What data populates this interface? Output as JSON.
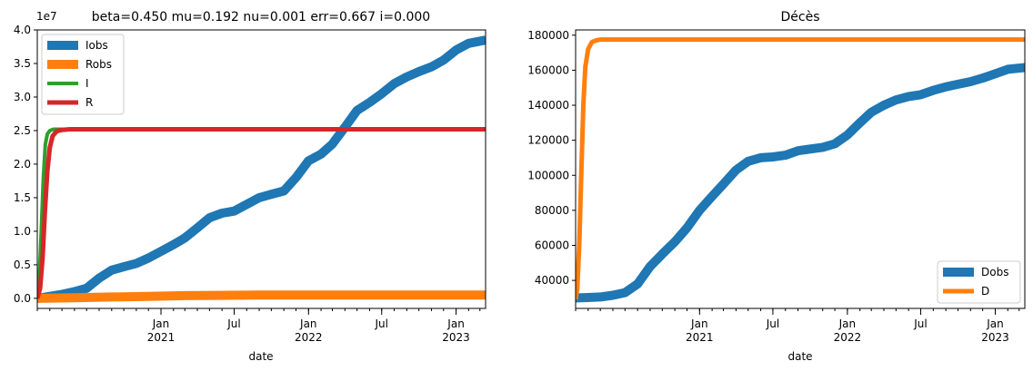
{
  "chart_data": [
    {
      "type": "line",
      "title": "beta=0.450 mu=0.192 nu=0.001 err=0.667 i=0.000",
      "xlabel": "date",
      "ylabel": "",
      "offset_label": "1e7",
      "xlim": [
        "2020-03-01",
        "2023-03-15"
      ],
      "ylim": [
        -0.15,
        4.0
      ],
      "yticks": [
        0.0,
        0.5,
        1.0,
        1.5,
        2.0,
        2.5,
        3.0,
        3.5,
        4.0
      ],
      "ytick_labels": [
        "0.0",
        "0.5",
        "1.0",
        "1.5",
        "2.0",
        "2.5",
        "3.0",
        "3.5",
        "4.0"
      ],
      "xticks": [
        {
          "date": "2021-01-01",
          "label": "Jan",
          "sub": "2021"
        },
        {
          "date": "2021-07-01",
          "label": "Jul",
          "sub": ""
        },
        {
          "date": "2022-01-01",
          "label": "Jan",
          "sub": "2022"
        },
        {
          "date": "2022-07-01",
          "label": "Jul",
          "sub": ""
        },
        {
          "date": "2023-01-01",
          "label": "Jan",
          "sub": "2023"
        }
      ],
      "grid": false,
      "legend": "upper-left",
      "series": [
        {
          "name": "Iobs",
          "color": "#1f77b4",
          "width": 10,
          "x": [
            "2020-03-01",
            "2020-04-01",
            "2020-05-01",
            "2020-06-01",
            "2020-07-01",
            "2020-08-01",
            "2020-09-01",
            "2020-10-01",
            "2020-11-01",
            "2020-12-01",
            "2021-01-01",
            "2021-02-01",
            "2021-03-01",
            "2021-04-01",
            "2021-05-01",
            "2021-06-01",
            "2021-07-01",
            "2021-08-01",
            "2021-09-01",
            "2021-10-01",
            "2021-11-01",
            "2021-12-01",
            "2022-01-01",
            "2022-02-01",
            "2022-03-01",
            "2022-04-01",
            "2022-05-01",
            "2022-06-01",
            "2022-07-01",
            "2022-08-01",
            "2022-09-01",
            "2022-10-01",
            "2022-11-01",
            "2022-12-01",
            "2023-01-01",
            "2023-02-01",
            "2023-03-15"
          ],
          "y": [
            0.0,
            0.03,
            0.06,
            0.1,
            0.15,
            0.3,
            0.42,
            0.47,
            0.52,
            0.6,
            0.7,
            0.8,
            0.9,
            1.05,
            1.2,
            1.27,
            1.3,
            1.4,
            1.5,
            1.55,
            1.6,
            1.8,
            2.05,
            2.15,
            2.3,
            2.55,
            2.8,
            2.92,
            3.05,
            3.2,
            3.3,
            3.38,
            3.45,
            3.55,
            3.7,
            3.8,
            3.85
          ]
        },
        {
          "name": "Robs",
          "color": "#ff7f0e",
          "width": 10,
          "x": [
            "2020-03-01",
            "2020-06-01",
            "2020-09-01",
            "2020-12-01",
            "2021-03-01",
            "2021-06-01",
            "2021-09-01",
            "2021-12-01",
            "2022-03-01",
            "2022-06-01",
            "2022-09-01",
            "2022-12-01",
            "2023-03-15"
          ],
          "y": [
            0.0,
            0.01,
            0.02,
            0.03,
            0.04,
            0.045,
            0.05,
            0.05,
            0.05,
            0.05,
            0.05,
            0.05,
            0.05
          ]
        },
        {
          "name": "I",
          "color": "#2ca02c",
          "width": 4,
          "x": [
            "2020-03-01",
            "2020-03-06",
            "2020-03-11",
            "2020-03-16",
            "2020-03-21",
            "2020-03-26",
            "2020-04-01",
            "2020-04-10",
            "2020-04-25",
            "2020-05-15",
            "2023-03-15"
          ],
          "y": [
            0.0,
            0.3,
            1.0,
            1.8,
            2.3,
            2.45,
            2.5,
            2.52,
            2.52,
            2.52,
            2.52
          ]
        },
        {
          "name": "R",
          "color": "#d62728",
          "width": 5,
          "x": [
            "2020-03-01",
            "2020-03-08",
            "2020-03-14",
            "2020-03-20",
            "2020-03-26",
            "2020-04-01",
            "2020-04-08",
            "2020-04-18",
            "2020-05-01",
            "2020-05-20",
            "2023-03-15"
          ],
          "y": [
            0.0,
            0.15,
            0.6,
            1.3,
            1.9,
            2.25,
            2.42,
            2.49,
            2.51,
            2.52,
            2.52
          ]
        }
      ]
    },
    {
      "type": "line",
      "title": "Décès",
      "xlabel": "date",
      "ylabel": "",
      "xlim": [
        "2020-03-01",
        "2023-03-15"
      ],
      "ylim": [
        24000,
        183000
      ],
      "yticks": [
        40000,
        60000,
        80000,
        100000,
        120000,
        140000,
        160000,
        180000
      ],
      "ytick_labels": [
        "40000",
        "60000",
        "80000",
        "100000",
        "120000",
        "140000",
        "160000",
        "180000"
      ],
      "xticks": [
        {
          "date": "2021-01-01",
          "label": "Jan",
          "sub": "2021"
        },
        {
          "date": "2021-07-01",
          "label": "Jul",
          "sub": ""
        },
        {
          "date": "2022-01-01",
          "label": "Jan",
          "sub": "2022"
        },
        {
          "date": "2022-07-01",
          "label": "Jul",
          "sub": ""
        },
        {
          "date": "2023-01-01",
          "label": "Jan",
          "sub": "2023"
        }
      ],
      "grid": false,
      "legend": "lower-right",
      "series": [
        {
          "name": "Dobs",
          "color": "#1f77b4",
          "width": 10,
          "x": [
            "2020-03-01",
            "2020-04-01",
            "2020-05-01",
            "2020-06-01",
            "2020-07-01",
            "2020-08-01",
            "2020-09-01",
            "2020-10-01",
            "2020-11-01",
            "2020-12-01",
            "2021-01-01",
            "2021-02-01",
            "2021-03-01",
            "2021-04-01",
            "2021-05-01",
            "2021-06-01",
            "2021-07-01",
            "2021-08-01",
            "2021-09-01",
            "2021-10-01",
            "2021-11-01",
            "2021-12-01",
            "2022-01-01",
            "2022-02-01",
            "2022-03-01",
            "2022-04-01",
            "2022-05-01",
            "2022-06-01",
            "2022-07-01",
            "2022-08-01",
            "2022-09-01",
            "2022-10-01",
            "2022-11-01",
            "2022-12-01",
            "2023-01-01",
            "2023-02-01",
            "2023-03-15"
          ],
          "y": [
            30000,
            30200,
            30500,
            31500,
            33000,
            38000,
            48000,
            55000,
            62000,
            70000,
            80000,
            88000,
            95000,
            103000,
            108000,
            110000,
            110500,
            111500,
            114000,
            115000,
            116000,
            118000,
            123000,
            130000,
            136000,
            140000,
            143000,
            145000,
            146000,
            148500,
            150500,
            152000,
            153500,
            155500,
            158000,
            160500,
            161500
          ]
        },
        {
          "name": "D",
          "color": "#ff7f0e",
          "width": 5,
          "x": [
            "2020-03-01",
            "2020-03-05",
            "2020-03-10",
            "2020-03-15",
            "2020-03-20",
            "2020-03-25",
            "2020-04-01",
            "2020-04-10",
            "2020-04-20",
            "2020-05-01",
            "2020-05-15",
            "2023-03-15"
          ],
          "y": [
            29000,
            35000,
            60000,
            100000,
            140000,
            162000,
            172000,
            176000,
            177000,
            177500,
            177500,
            177500
          ]
        }
      ]
    }
  ]
}
